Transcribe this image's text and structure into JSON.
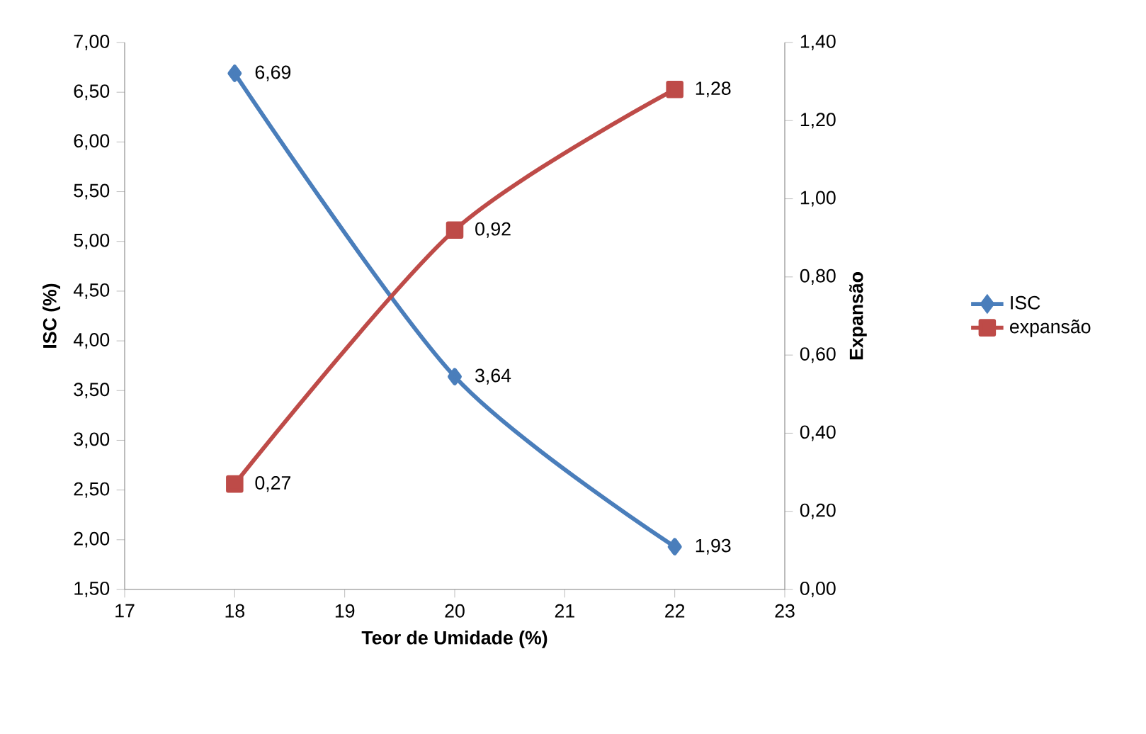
{
  "chart_data": {
    "type": "line",
    "xlabel": "Teor de Umidade (%)",
    "ylabel": "ISC (%)",
    "y2label": "Expansão",
    "x": [
      18,
      20,
      22
    ],
    "xlim": [
      17,
      23
    ],
    "xticks": [
      17,
      18,
      19,
      20,
      21,
      22,
      23
    ],
    "ylim": [
      1.5,
      7
    ],
    "yticks": [
      {
        "value": 1.5,
        "label": "1,50"
      },
      {
        "value": 2,
        "label": "2,00"
      },
      {
        "value": 2.5,
        "label": "2,50"
      },
      {
        "value": 3,
        "label": "3,00"
      },
      {
        "value": 3.5,
        "label": "3,50"
      },
      {
        "value": 4,
        "label": "4,00"
      },
      {
        "value": 4.5,
        "label": "4,50"
      },
      {
        "value": 5,
        "label": "5,00"
      },
      {
        "value": 5.5,
        "label": "5,50"
      },
      {
        "value": 6,
        "label": "6,00"
      },
      {
        "value": 6.5,
        "label": "6,50"
      },
      {
        "value": 7,
        "label": "7,00"
      }
    ],
    "y2lim": [
      0,
      1.4
    ],
    "y2ticks": [
      {
        "value": 0,
        "label": "0,00"
      },
      {
        "value": 0.2,
        "label": "0,20"
      },
      {
        "value": 0.4,
        "label": "0,40"
      },
      {
        "value": 0.6,
        "label": "0,60"
      },
      {
        "value": 0.8,
        "label": "0,80"
      },
      {
        "value": 1,
        "label": "1,00"
      },
      {
        "value": 1.2,
        "label": "1,20"
      },
      {
        "value": 1.4,
        "label": "1,40"
      }
    ],
    "legend": "right",
    "series": [
      {
        "name": "ISC",
        "color": "#4a7ebb",
        "marker": "diamond",
        "values": [
          6.69,
          3.64,
          1.93
        ],
        "value_labels": [
          "6,69",
          "3,64",
          "1,93"
        ]
      },
      {
        "name": "expansão",
        "color": "#be4b48",
        "marker": "square",
        "axis": "y2",
        "values": [
          0.27,
          0.92,
          1.28
        ],
        "value_labels": [
          "0,27",
          "0,92",
          "1,28"
        ]
      }
    ]
  }
}
